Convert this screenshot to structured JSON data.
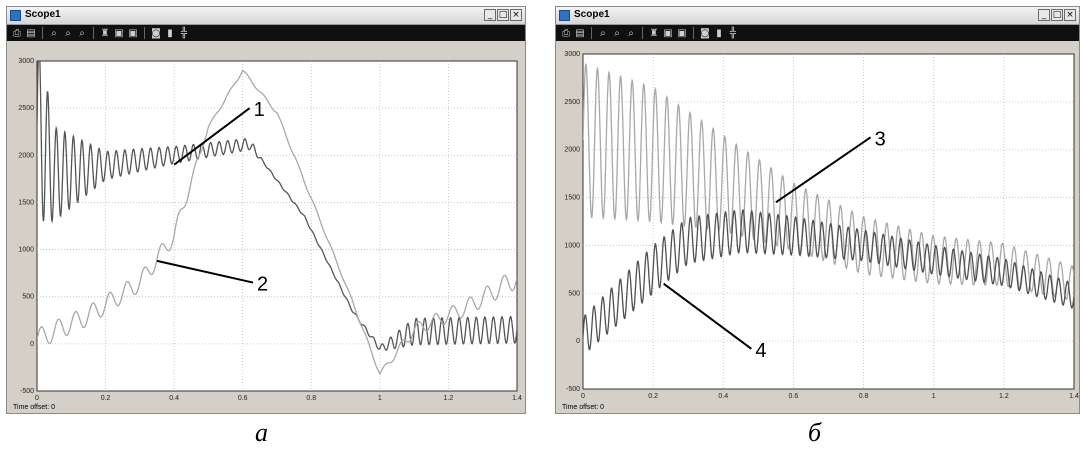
{
  "chart_data": [
    {
      "type": "line",
      "window_title": "Scope1",
      "time_offset_label": "Time offset:",
      "time_offset_value": "0",
      "caption": "а",
      "xlim": [
        0,
        1.4
      ],
      "ylim": [
        -500,
        3000
      ],
      "x_ticks": [
        "0",
        "0.2",
        "0.4",
        "0.6",
        "0.8",
        "1",
        "1.2",
        "1.4"
      ],
      "y_ticks": [
        "-500",
        "0",
        "500",
        "1000",
        "1500",
        "2000",
        "2500",
        "3000"
      ],
      "grid": true,
      "series": [
        {
          "name": "1",
          "color": "#555555",
          "keypoints": [
            [
              0,
              2300
            ],
            [
              0.05,
              1800
            ],
            [
              0.3,
              1950
            ],
            [
              0.62,
              2120
            ],
            [
              0.78,
              1350
            ],
            [
              0.92,
              350
            ],
            [
              1.0,
              -50
            ],
            [
              1.1,
              130
            ],
            [
              1.4,
              150
            ]
          ],
          "osc": [
            [
              0,
              1000
            ],
            [
              0.05,
              500
            ],
            [
              0.2,
              150
            ],
            [
              0.4,
              90
            ],
            [
              0.62,
              60
            ],
            [
              0.66,
              10
            ],
            [
              0.92,
              10
            ],
            [
              1.0,
              30
            ],
            [
              1.1,
              140
            ],
            [
              1.4,
              140
            ]
          ],
          "period": 0.025
        },
        {
          "name": "2",
          "color": "#a8a8a8",
          "keypoints": [
            [
              0,
              50
            ],
            [
              0.15,
              300
            ],
            [
              0.3,
              650
            ],
            [
              0.4,
              1150
            ],
            [
              0.5,
              2300
            ],
            [
              0.6,
              2900
            ],
            [
              0.7,
              2450
            ],
            [
              0.92,
              450
            ],
            [
              1.0,
              -320
            ],
            [
              1.1,
              150
            ],
            [
              1.25,
              380
            ],
            [
              1.4,
              700
            ]
          ],
          "osc": [
            [
              0,
              110
            ],
            [
              0.4,
              90
            ],
            [
              0.5,
              15
            ],
            [
              0.92,
              15
            ],
            [
              1.0,
              20
            ],
            [
              1.08,
              60
            ],
            [
              1.4,
              110
            ]
          ],
          "period": 0.05
        }
      ],
      "callouts": [
        {
          "label": "1",
          "from": [
            0.4,
            1900
          ],
          "to": [
            0.62,
            2500
          ]
        },
        {
          "label": "2",
          "from": [
            0.35,
            880
          ],
          "to": [
            0.63,
            650
          ]
        }
      ]
    },
    {
      "type": "line",
      "window_title": "Scope1",
      "time_offset_label": "Time offset:",
      "time_offset_value": "0",
      "caption": "б",
      "xlim": [
        0,
        1.4
      ],
      "ylim": [
        -500,
        3000
      ],
      "x_ticks": [
        "0",
        "0.2",
        "0.4",
        "0.6",
        "0.8",
        "1",
        "1.2",
        "1.4"
      ],
      "y_ticks": [
        "-500",
        "0",
        "500",
        "1000",
        "1500",
        "2000",
        "2500",
        "3000"
      ],
      "grid": true,
      "series": [
        {
          "name": "3",
          "color": "#a8a8a8",
          "keypoints": [
            [
              0,
              2100
            ],
            [
              0.2,
              1950
            ],
            [
              0.4,
              1650
            ],
            [
              0.6,
              1300
            ],
            [
              0.8,
              1000
            ],
            [
              1.0,
              850
            ],
            [
              1.2,
              800
            ],
            [
              1.4,
              600
            ]
          ],
          "osc": [
            [
              0,
              800
            ],
            [
              0.2,
              700
            ],
            [
              0.4,
              500
            ],
            [
              0.6,
              350
            ],
            [
              0.8,
              300
            ],
            [
              1.0,
              250
            ],
            [
              1.2,
              220
            ],
            [
              1.4,
              180
            ]
          ],
          "period": 0.033
        },
        {
          "name": "4",
          "color": "#505050",
          "keypoints": [
            [
              0,
              50
            ],
            [
              0.1,
              400
            ],
            [
              0.2,
              750
            ],
            [
              0.3,
              1050
            ],
            [
              0.45,
              1150
            ],
            [
              0.6,
              1100
            ],
            [
              0.8,
              1000
            ],
            [
              1.0,
              850
            ],
            [
              1.2,
              720
            ],
            [
              1.4,
              470
            ]
          ],
          "osc": [
            [
              0,
              200
            ],
            [
              0.2,
              250
            ],
            [
              0.4,
              230
            ],
            [
              0.6,
              200
            ],
            [
              0.8,
              160
            ],
            [
              1.0,
              150
            ],
            [
              1.2,
              140
            ],
            [
              1.4,
              130
            ]
          ],
          "period": 0.025
        }
      ],
      "callouts": [
        {
          "label": "3",
          "from": [
            0.55,
            1450
          ],
          "to": [
            0.82,
            2130
          ]
        },
        {
          "label": "4",
          "from": [
            0.23,
            600
          ],
          "to": [
            0.48,
            -80
          ]
        }
      ]
    }
  ]
}
